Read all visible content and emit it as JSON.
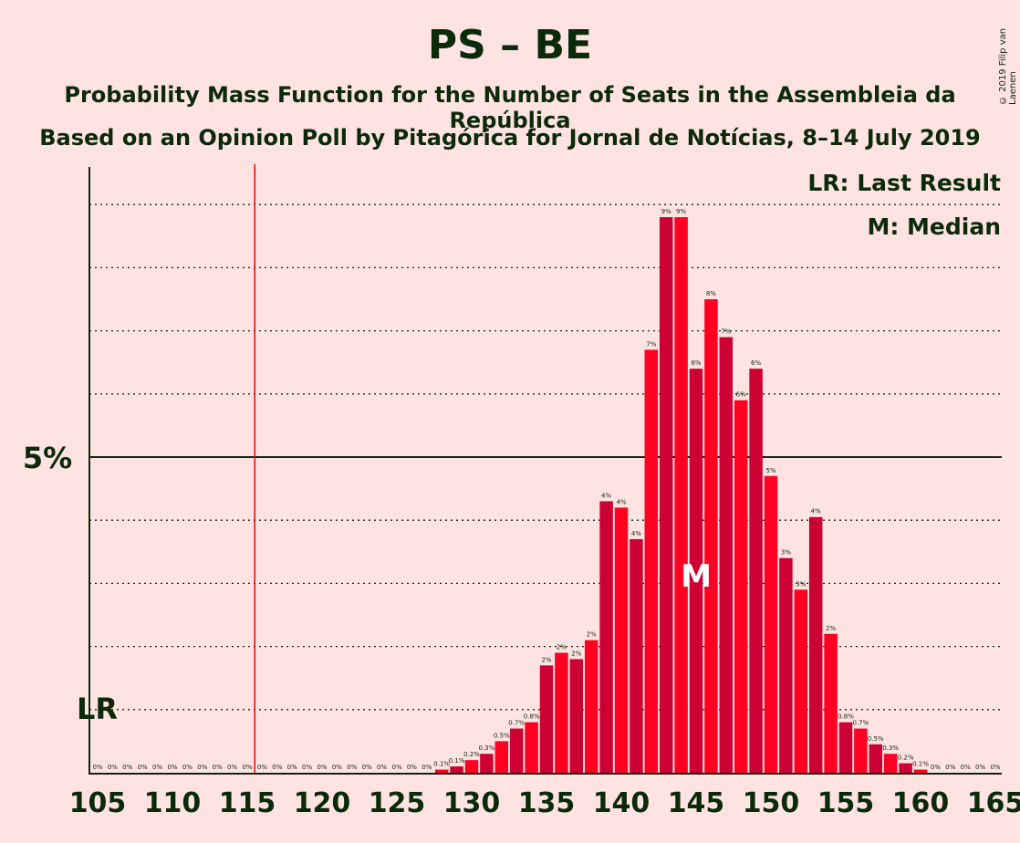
{
  "chart_data": {
    "type": "bar",
    "title": "PS – BE",
    "subtitle": "Probability Mass Function for the Number of Seats in the Assembleia da República",
    "subtitle2": "Based on an Opinion Poll by Pitagórica for Jornal de Notícias, 8–14 July 2019",
    "copyright": "© 2019 Filip van Laenen",
    "legend": [
      "LR: Last Result",
      "M: Median"
    ],
    "legend_position": "top-right",
    "ylabel_5": "5%",
    "lr_label": "LR",
    "median_label": "M",
    "last_result_seat": 116,
    "median_seat": 145,
    "xlim": [
      105,
      165
    ],
    "ylim": [
      0,
      9.6
    ],
    "x_ticks": [
      105,
      110,
      115,
      120,
      125,
      130,
      135,
      140,
      145,
      150,
      155,
      160,
      165
    ],
    "grid": "dotted every 1%, solid line at 5%",
    "seats": [
      105,
      106,
      107,
      108,
      109,
      110,
      111,
      112,
      113,
      114,
      115,
      116,
      117,
      118,
      119,
      120,
      121,
      122,
      123,
      124,
      125,
      126,
      127,
      128,
      129,
      130,
      131,
      132,
      133,
      134,
      135,
      136,
      137,
      138,
      139,
      140,
      141,
      142,
      143,
      144,
      145,
      146,
      147,
      148,
      149,
      150,
      151,
      152,
      153,
      154,
      155,
      156,
      157,
      158,
      159,
      160,
      161,
      162,
      163,
      164,
      165
    ],
    "values": [
      0,
      0,
      0,
      0,
      0,
      0,
      0,
      0,
      0,
      0,
      0,
      0,
      0,
      0,
      0,
      0,
      0,
      0,
      0,
      0,
      0,
      0,
      0,
      0.05,
      0.1,
      0.2,
      0.3,
      0.5,
      0.7,
      0.8,
      1.7,
      1.9,
      1.8,
      2.1,
      4.3,
      4.2,
      3.7,
      6.7,
      8.8,
      8.8,
      6.4,
      7.5,
      6.9,
      5.9,
      6.4,
      4.7,
      3.4,
      2.9,
      4.05,
      2.2,
      0.8,
      0.7,
      0.45,
      0.3,
      0.15,
      0.05,
      0,
      0,
      0,
      0,
      0
    ],
    "labels": [
      "0%",
      "0%",
      "0%",
      "0%",
      "0%",
      "0%",
      "0%",
      "0%",
      "0%",
      "0%",
      "0%",
      "0%",
      "0%",
      "0%",
      "0%",
      "0%",
      "0%",
      "0%",
      "0%",
      "0%",
      "0%",
      "0%",
      "0%",
      "0.1%",
      "0.1%",
      "0.2%",
      "0.3%",
      "0.5%",
      "0.7%",
      "0.8%",
      "2%",
      "2%",
      "2%",
      "2%",
      "4%",
      "4%",
      "4%",
      "7%",
      "9%",
      "9%",
      "6%",
      "8%",
      "7%",
      "6%",
      "6%",
      "5%",
      "3%",
      "3%",
      "4%",
      "2%",
      "0.8%",
      "0.7%",
      "0.5%",
      "0.3%",
      "0.2%",
      "0.1%",
      "0%",
      "0%",
      "0%",
      "0%",
      "0%"
    ]
  }
}
